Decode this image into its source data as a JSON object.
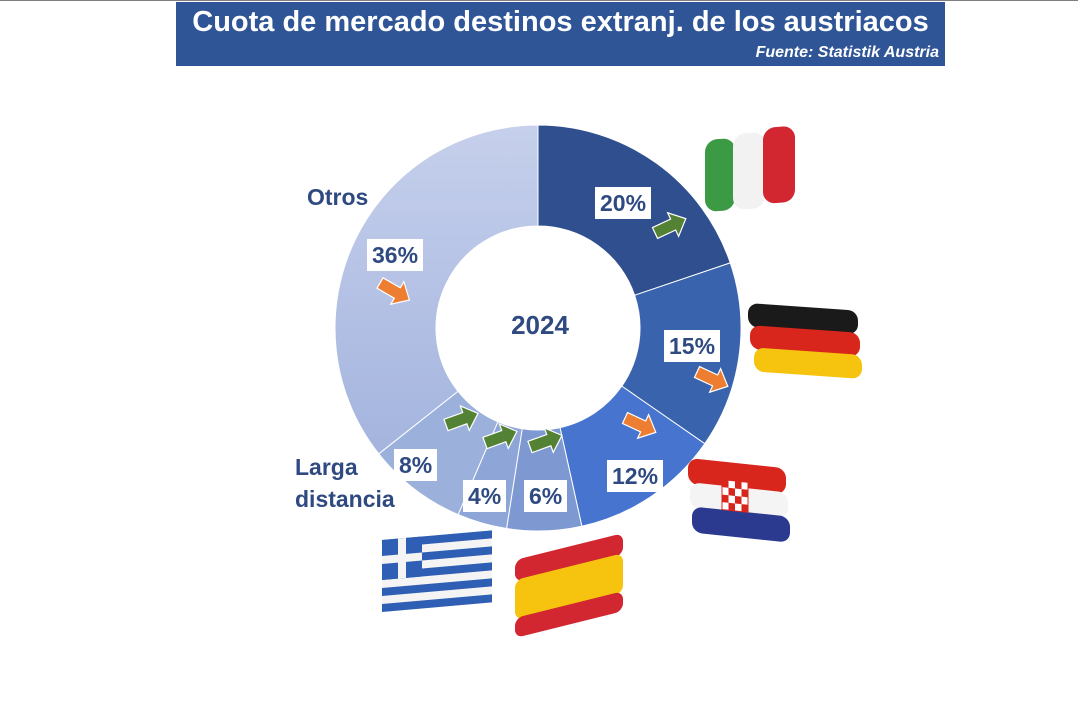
{
  "header": {
    "title": "Cuota de mercado destinos extranj. de los austriacos",
    "subtitle": "Fuente: Statistik Austria"
  },
  "chart_data": {
    "type": "pie",
    "variant": "donut",
    "center_label": "2024",
    "slices": [
      {
        "label": "20%",
        "value": 20,
        "color": "#2f4f8f",
        "trend": "up",
        "flag": "italy-flag"
      },
      {
        "label": "15%",
        "value": 15,
        "color": "#3a63ad",
        "trend": "down",
        "flag": "germany-flag"
      },
      {
        "label": "12%",
        "value": 12,
        "color": "#4674cf",
        "trend": "down",
        "flag": "croatia-flag"
      },
      {
        "label": "6%",
        "value": 6,
        "color": "#7e99d2",
        "trend": "up",
        "flag": "spain-flag"
      },
      {
        "label": "4%",
        "value": 4,
        "color": "#8ea5d8",
        "trend": "up",
        "flag": "greece-flag"
      },
      {
        "label": "8%",
        "value": 8,
        "color": "#9cb0dc",
        "trend": "up",
        "category": "Larga distancia"
      },
      {
        "label": "36%",
        "value": 36,
        "color": "#b4c2e6",
        "trend": "down",
        "category": "Otros"
      }
    ],
    "categories": {
      "otros": "Otros",
      "larga_line1": "Larga",
      "larga_line2": "distancia"
    },
    "trend_colors": {
      "up": "#548235",
      "down": "#ed7d31"
    }
  }
}
